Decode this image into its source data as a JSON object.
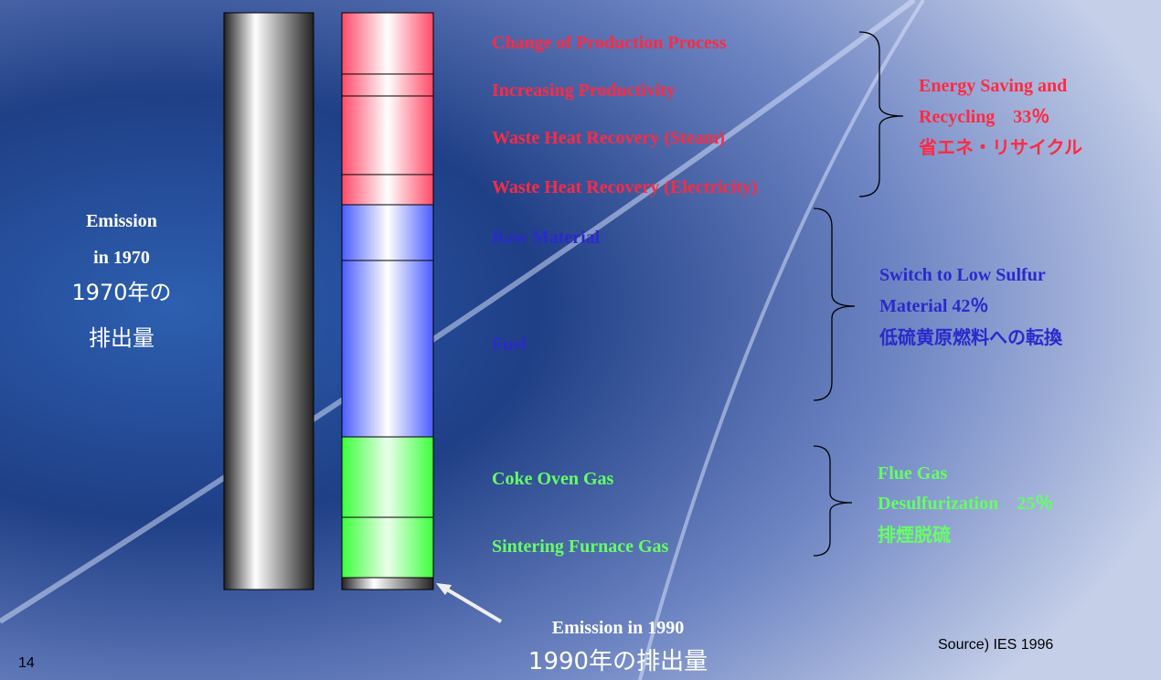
{
  "page_number": "14",
  "left_label": {
    "line1": "Emission",
    "line2": "in 1970",
    "line3": "1970年の",
    "line4": "排出量"
  },
  "groups": [
    {
      "items": [
        "Change of Production Process",
        "Increasing Productivity",
        "Waste Heat Recovery (Steam)",
        "Waste Heat Recovery (Electricity)"
      ],
      "summary": [
        "Energy Saving and",
        "Recycling　33％",
        "省エネ・リサイクル"
      ]
    },
    {
      "items": [
        "Raw Material",
        "Fuel"
      ],
      "summary": [
        "Switch to Low Sulfur",
        "Material 42％",
        "低硫黄原燃料への転換"
      ]
    },
    {
      "items": [
        "Coke Oven Gas",
        "Sintering Furnace Gas"
      ],
      "summary": [
        "Flue Gas",
        "Desulfurization　25％",
        "排煙脱硫"
      ]
    }
  ],
  "bottom_label": {
    "line1": "Emission in 1990",
    "line2": "1990年の排出量"
  },
  "source": "Source) IES 1996"
}
